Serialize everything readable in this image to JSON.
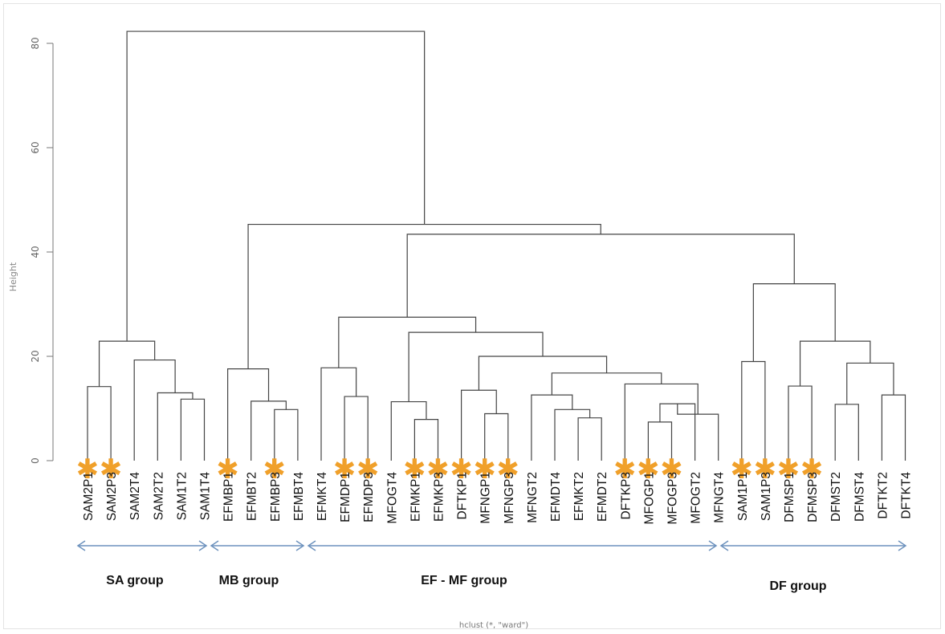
{
  "y_axis": {
    "label": "Height",
    "ticks": [
      "0",
      "20",
      "40",
      "60",
      "80"
    ]
  },
  "x_caption": "hclust (*, \"ward\")",
  "leaves": [
    {
      "label": "SAM2P1",
      "star": true
    },
    {
      "label": "SAM2P3",
      "star": true
    },
    {
      "label": "SAM2T4",
      "star": false
    },
    {
      "label": "SAM2T2",
      "star": false
    },
    {
      "label": "SAM1T2",
      "star": false
    },
    {
      "label": "SAM1T4",
      "star": false
    },
    {
      "label": "EFMBP1",
      "star": true
    },
    {
      "label": "EFMBT2",
      "star": false
    },
    {
      "label": "EFMBP3",
      "star": true
    },
    {
      "label": "EFMBT4",
      "star": false
    },
    {
      "label": "EFMKT4",
      "star": false
    },
    {
      "label": "EFMDP1",
      "star": true
    },
    {
      "label": "EFMDP3",
      "star": true
    },
    {
      "label": "MFOGT4",
      "star": false
    },
    {
      "label": "EFMKP1",
      "star": true
    },
    {
      "label": "EFMKP3",
      "star": true
    },
    {
      "label": "DFTKP1",
      "star": true
    },
    {
      "label": "MFNGP1",
      "star": true
    },
    {
      "label": "MFNGP3",
      "star": true
    },
    {
      "label": "MFNGT2",
      "star": false
    },
    {
      "label": "EFMDT4",
      "star": false
    },
    {
      "label": "EFMKT2",
      "star": false
    },
    {
      "label": "EFMDT2",
      "star": false
    },
    {
      "label": "DFTKP3",
      "star": true
    },
    {
      "label": "MFOGP1",
      "star": true
    },
    {
      "label": "MFOGP3",
      "star": true
    },
    {
      "label": "MFOGT2",
      "star": false
    },
    {
      "label": "MFNGT4",
      "star": false
    },
    {
      "label": "SAM1P1",
      "star": true
    },
    {
      "label": "SAM1P3",
      "star": true
    },
    {
      "label": "DFMSP1",
      "star": true
    },
    {
      "label": "DFMSP3",
      "star": true
    },
    {
      "label": "DFMST2",
      "star": false
    },
    {
      "label": "DFMST4",
      "star": false
    },
    {
      "label": "DFTKT2",
      "star": false
    },
    {
      "label": "DFTKT4",
      "star": false
    }
  ],
  "merges": [
    {
      "a": "L0",
      "b": "L1",
      "h": 14.2
    },
    {
      "a": "L4",
      "b": "L5",
      "h": 11.8
    },
    {
      "a": "L3",
      "b": "M1",
      "h": 13.0
    },
    {
      "a": "L2",
      "b": "M2",
      "h": 19.3
    },
    {
      "a": "M0",
      "b": "M3",
      "h": 22.9
    },
    {
      "a": "L8",
      "b": "L9",
      "h": 9.8
    },
    {
      "a": "L7",
      "b": "M5",
      "h": 11.4
    },
    {
      "a": "L6",
      "b": "M6",
      "h": 17.6
    },
    {
      "a": "L11",
      "b": "L12",
      "h": 12.3
    },
    {
      "a": "L10",
      "b": "M8",
      "h": 17.8
    },
    {
      "a": "L14",
      "b": "L15",
      "h": 7.9
    },
    {
      "a": "L13",
      "b": "M10",
      "h": 11.3
    },
    {
      "a": "L17",
      "b": "L18",
      "h": 9.0
    },
    {
      "a": "L16",
      "b": "M12",
      "h": 13.5
    },
    {
      "a": "L21",
      "b": "L22",
      "h": 8.2
    },
    {
      "a": "L20",
      "b": "M14",
      "h": 9.8
    },
    {
      "a": "L19",
      "b": "M15",
      "h": 12.6
    },
    {
      "a": "L24",
      "b": "L25",
      "h": 7.4
    },
    {
      "a": "M17",
      "b": "L26",
      "h": 10.9
    },
    {
      "a": "M18",
      "b": "L27",
      "h": 8.9
    },
    {
      "a": "L23",
      "b": "M18b",
      "h": 14.7
    },
    {
      "a": "M16",
      "b": "M20",
      "h": 16.8
    },
    {
      "a": "M13",
      "b": "M21",
      "h": 20.0
    },
    {
      "a": "M11",
      "b": "M22",
      "h": 24.6
    },
    {
      "a": "M9",
      "b": "M23",
      "h": 27.5
    },
    {
      "a": "L28",
      "b": "L29",
      "h": 19.0
    },
    {
      "a": "L30",
      "b": "L31",
      "h": 14.3
    },
    {
      "a": "L32",
      "b": "L33",
      "h": 10.8
    },
    {
      "a": "L34",
      "b": "L35",
      "h": 12.6
    },
    {
      "a": "M27",
      "b": "M28",
      "h": 18.7
    },
    {
      "a": "M26",
      "b": "M29",
      "h": 22.9
    },
    {
      "a": "M25",
      "b": "M30",
      "h": 33.9
    },
    {
      "a": "M24",
      "b": "M31",
      "h": 43.4
    },
    {
      "a": "M7",
      "b": "M32",
      "h": 45.3
    },
    {
      "a": "M4",
      "b": "M33",
      "h": 82.3
    }
  ],
  "groups": [
    {
      "label": "SA group",
      "from": 0,
      "to": 5
    },
    {
      "label": "MB group",
      "from": 6,
      "to": 9
    },
    {
      "label": "EF - MF group",
      "from": 10,
      "to": 27
    },
    {
      "label": "DF group",
      "from": 28,
      "to": 35
    }
  ],
  "colors": {
    "star": "#f0a02a",
    "group_arrow": "#6d92bd",
    "tree": "#444444"
  }
}
